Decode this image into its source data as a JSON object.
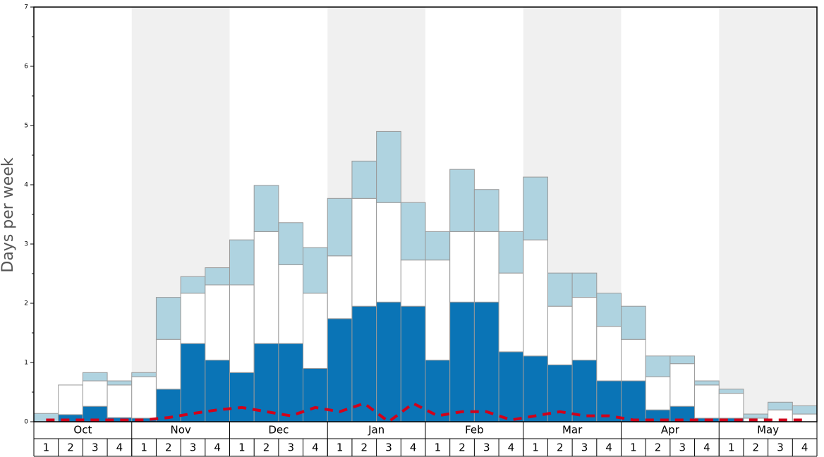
{
  "chart_data": {
    "type": "stacked-bar",
    "ylabel": "Days per week",
    "groups": [
      "Oct",
      "Nov",
      "Dec",
      "Jan",
      "Feb",
      "Mar",
      "Apr",
      "May"
    ],
    "categories": [
      "1",
      "2",
      "3",
      "4",
      "1",
      "2",
      "3",
      "4",
      "1",
      "2",
      "3",
      "4",
      "1",
      "2",
      "3",
      "4",
      "1",
      "2",
      "3",
      "4",
      "1",
      "2",
      "3",
      "4",
      "1",
      "2",
      "3",
      "4",
      "1",
      "2",
      "3",
      "4"
    ],
    "series": [
      {
        "color": "#0a74b6",
        "values": [
          0,
          0.12,
          0.26,
          0.07,
          0.06,
          0.55,
          1.32,
          1.04,
          0.83,
          1.32,
          1.32,
          0.9,
          1.74,
          1.95,
          2.02,
          1.95,
          1.04,
          2.02,
          2.02,
          1.18,
          1.11,
          0.96,
          1.04,
          0.69,
          0.69,
          0.2,
          0.26,
          0.06,
          0.06,
          0,
          0,
          0
        ]
      },
      {
        "color": "#ffffff",
        "values": [
          0,
          0.5,
          0.43,
          0.55,
          0.7,
          0.84,
          0.85,
          1.27,
          1.48,
          1.89,
          1.33,
          1.27,
          1.06,
          1.82,
          1.68,
          0.78,
          1.69,
          1.19,
          1.19,
          1.33,
          1.96,
          0.99,
          1.06,
          0.92,
          0.7,
          0.56,
          0.72,
          0.56,
          0.42,
          0.06,
          0.2,
          0.13
        ]
      },
      {
        "color": "#afd3e0",
        "values": [
          0.14,
          0,
          0.14,
          0.07,
          0.07,
          0.71,
          0.28,
          0.29,
          0.76,
          0.78,
          0.71,
          0.77,
          0.97,
          0.63,
          1.2,
          0.97,
          0.48,
          1.05,
          0.71,
          0.7,
          1.06,
          0.56,
          0.41,
          0.56,
          0.56,
          0.35,
          0.13,
          0.07,
          0.07,
          0.07,
          0.13,
          0.14
        ]
      }
    ],
    "line": {
      "color": "#d0021b",
      "dashed": true,
      "values": [
        0.03,
        0.03,
        0.03,
        0.03,
        0.03,
        0.07,
        0.14,
        0.2,
        0.24,
        0.17,
        0.1,
        0.24,
        0.17,
        0.31,
        0,
        0.31,
        0.1,
        0.17,
        0.17,
        0.03,
        0.1,
        0.17,
        0.1,
        0.1,
        0.03,
        0.03,
        0.03,
        0.03,
        0.03,
        0.03,
        0.03,
        0.03
      ]
    },
    "ylim": [
      0,
      7
    ],
    "yticks": [
      0,
      1,
      2,
      3,
      4,
      5,
      6,
      7
    ],
    "yminorticks": [
      0.5,
      1.5,
      2.5,
      3.5,
      4.5,
      5.5,
      6.5
    ],
    "shading": "#f0f0f0"
  }
}
